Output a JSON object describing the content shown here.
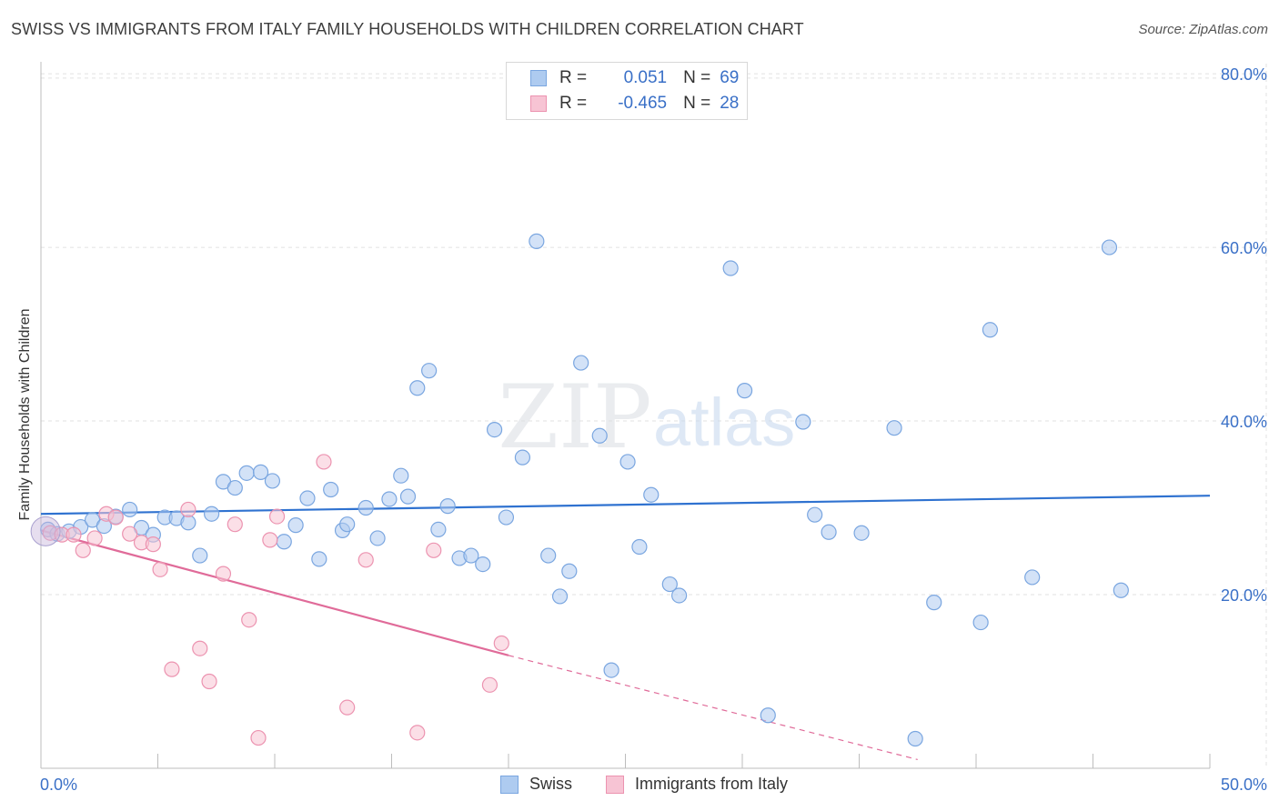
{
  "title": "SWISS VS IMMIGRANTS FROM ITALY FAMILY HOUSEHOLDS WITH CHILDREN CORRELATION CHART",
  "source": "Source: ZipAtlas.com",
  "watermark": {
    "zip": "ZIP",
    "atlas": "atlas"
  },
  "legend": {
    "rows": [
      {
        "r_label": "R =",
        "r_value": "0.051",
        "n_label": "N =",
        "n_value": "69",
        "color": "#aecbf0",
        "border": "#7aa6e0"
      },
      {
        "r_label": "R =",
        "r_value": "-0.465",
        "n_label": "N =",
        "n_value": "28",
        "color": "#f7c4d4",
        "border": "#ec93b0"
      }
    ]
  },
  "bottom_legend": [
    "Swiss",
    "Immigrants from Italy"
  ],
  "chart_data": {
    "type": "scatter",
    "title": "SWISS VS IMMIGRANTS FROM ITALY FAMILY HOUSEHOLDS WITH CHILDREN CORRELATION CHART",
    "xlabel": "",
    "ylabel": "Family Households with Children",
    "xlim": [
      0,
      50
    ],
    "ylim": [
      0,
      82
    ],
    "x_tick_labels": [
      "0.0%",
      "50.0%"
    ],
    "y_ticks": [
      20,
      40,
      60,
      80
    ],
    "y_tick_labels": [
      "20.0%",
      "40.0%",
      "60.0%",
      "80.0%"
    ],
    "grid": true,
    "series": [
      {
        "name": "Swiss",
        "color": "#aecbf0",
        "edge": "#7aa6e0",
        "trend_color": "#2f72d0",
        "trend": {
          "x": [
            0,
            50
          ],
          "y": [
            29.3,
            31.4
          ]
        },
        "points": [
          [
            0.3,
            27.5
          ],
          [
            0.7,
            27.0
          ],
          [
            1.2,
            27.3
          ],
          [
            1.7,
            27.8
          ],
          [
            2.2,
            28.6
          ],
          [
            2.7,
            27.9
          ],
          [
            3.2,
            29.0
          ],
          [
            3.8,
            29.8
          ],
          [
            4.3,
            27.7
          ],
          [
            4.8,
            26.9
          ],
          [
            5.3,
            28.9
          ],
          [
            5.8,
            28.8
          ],
          [
            6.3,
            28.3
          ],
          [
            6.8,
            24.5
          ],
          [
            7.3,
            29.3
          ],
          [
            7.8,
            33.0
          ],
          [
            8.3,
            32.3
          ],
          [
            8.8,
            34.0
          ],
          [
            9.4,
            34.1
          ],
          [
            9.9,
            33.1
          ],
          [
            10.4,
            26.1
          ],
          [
            10.9,
            28.0
          ],
          [
            11.4,
            31.1
          ],
          [
            11.9,
            24.1
          ],
          [
            12.4,
            32.1
          ],
          [
            12.9,
            27.4
          ],
          [
            13.1,
            28.1
          ],
          [
            13.9,
            30.0
          ],
          [
            14.4,
            26.5
          ],
          [
            14.9,
            31.0
          ],
          [
            15.4,
            33.7
          ],
          [
            15.7,
            31.3
          ],
          [
            16.1,
            43.8
          ],
          [
            16.6,
            45.8
          ],
          [
            17.0,
            27.5
          ],
          [
            17.4,
            30.2
          ],
          [
            17.9,
            24.2
          ],
          [
            18.4,
            24.5
          ],
          [
            18.9,
            23.5
          ],
          [
            19.4,
            39.0
          ],
          [
            19.9,
            28.9
          ],
          [
            20.6,
            35.8
          ],
          [
            21.2,
            60.7
          ],
          [
            21.7,
            24.5
          ],
          [
            22.2,
            19.8
          ],
          [
            22.6,
            22.7
          ],
          [
            23.1,
            46.7
          ],
          [
            23.9,
            38.3
          ],
          [
            24.4,
            11.3
          ],
          [
            25.1,
            35.3
          ],
          [
            25.6,
            25.5
          ],
          [
            26.1,
            31.5
          ],
          [
            26.9,
            21.2
          ],
          [
            27.3,
            19.9
          ],
          [
            29.5,
            57.6
          ],
          [
            30.1,
            43.5
          ],
          [
            31.1,
            6.1
          ],
          [
            32.6,
            39.9
          ],
          [
            33.1,
            29.2
          ],
          [
            33.7,
            27.2
          ],
          [
            35.1,
            27.1
          ],
          [
            36.5,
            39.2
          ],
          [
            37.4,
            3.4
          ],
          [
            38.2,
            19.1
          ],
          [
            40.2,
            16.8
          ],
          [
            40.6,
            50.5
          ],
          [
            42.4,
            22.0
          ],
          [
            45.7,
            60.0
          ],
          [
            46.2,
            20.5
          ]
        ]
      },
      {
        "name": "Immigrants from Italy",
        "color": "#f7c4d4",
        "edge": "#ec93b0",
        "trend_color": "#e06b99",
        "trend": {
          "x": [
            0,
            20
          ],
          "y": [
            27.4,
            13.0
          ]
        },
        "trend_dashed": {
          "x": [
            20,
            37.5
          ],
          "y": [
            13.0,
            1.0
          ]
        },
        "points": [
          [
            0.4,
            27.1
          ],
          [
            0.9,
            26.9
          ],
          [
            1.4,
            26.9
          ],
          [
            1.8,
            25.1
          ],
          [
            2.3,
            26.5
          ],
          [
            2.8,
            29.3
          ],
          [
            3.2,
            28.9
          ],
          [
            3.8,
            27.0
          ],
          [
            4.3,
            26.0
          ],
          [
            4.8,
            25.8
          ],
          [
            5.1,
            22.9
          ],
          [
            5.6,
            11.4
          ],
          [
            6.3,
            29.8
          ],
          [
            6.8,
            13.8
          ],
          [
            7.2,
            10.0
          ],
          [
            7.8,
            22.4
          ],
          [
            8.3,
            28.1
          ],
          [
            8.9,
            17.1
          ],
          [
            9.3,
            3.5
          ],
          [
            9.8,
            26.3
          ],
          [
            10.1,
            29.0
          ],
          [
            12.1,
            35.3
          ],
          [
            13.1,
            7.0
          ],
          [
            13.9,
            24.0
          ],
          [
            16.1,
            4.1
          ],
          [
            16.8,
            25.1
          ],
          [
            19.2,
            9.6
          ],
          [
            19.7,
            14.4
          ]
        ]
      }
    ]
  }
}
